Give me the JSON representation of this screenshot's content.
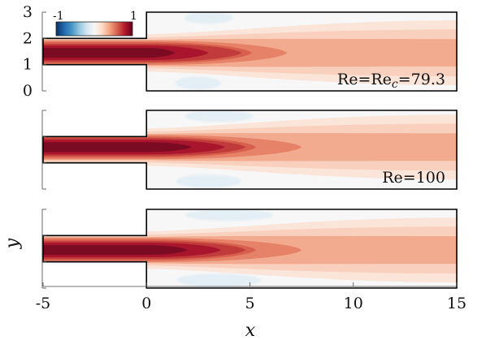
{
  "chart_data": {
    "type": "heatmap",
    "description_axes": {
      "xlabel": "x",
      "ylabel": "y",
      "xlim": [
        -5,
        15
      ],
      "ylim": [
        0,
        3
      ],
      "x_ticks": [
        -5,
        0,
        5,
        10,
        15
      ],
      "x_tick_labels": [
        "-5",
        "0",
        "5",
        "10",
        "15"
      ],
      "y_ticks": [
        0,
        1,
        2,
        3
      ],
      "y_tick_labels": [
        "0",
        "1",
        "2",
        "3"
      ]
    },
    "colorbar": {
      "min_label": "-1",
      "max_label": "1",
      "colors": [
        "#053061",
        "#2166ac",
        "#4393c3",
        "#92c5de",
        "#d1e5f0",
        "#f7f7f7",
        "#fddbc7",
        "#f4a582",
        "#d6604d",
        "#b2182b",
        "#67001f"
      ],
      "placement": "top-left inside first panel"
    },
    "geometry": {
      "inlet_channel_y": [
        1,
        2
      ],
      "outlet_channel_y": [
        0,
        3
      ],
      "step_x": 0
    },
    "panels": [
      {
        "annotation": "Re=Re",
        "annotation_sub": "c",
        "annotation_tail": "=79.3",
        "jet": {
          "center_y": 1.45,
          "core_end_x": 3.0,
          "high_end_x": 4.6,
          "mid_end_x": 6.8
        },
        "show_y_tick_labels": true
      },
      {
        "annotation": "Re=100",
        "jet": {
          "center_y": 1.6,
          "core_end_x": 3.8,
          "high_end_x": 4.8,
          "mid_end_x": 7.5
        },
        "show_y_tick_labels": false
      },
      {
        "annotation": "",
        "jet": {
          "center_y": 1.45,
          "core_end_x": 3.6,
          "high_end_x": 4.8,
          "mid_end_x": 7.5
        },
        "show_y_tick_labels": false
      }
    ]
  }
}
